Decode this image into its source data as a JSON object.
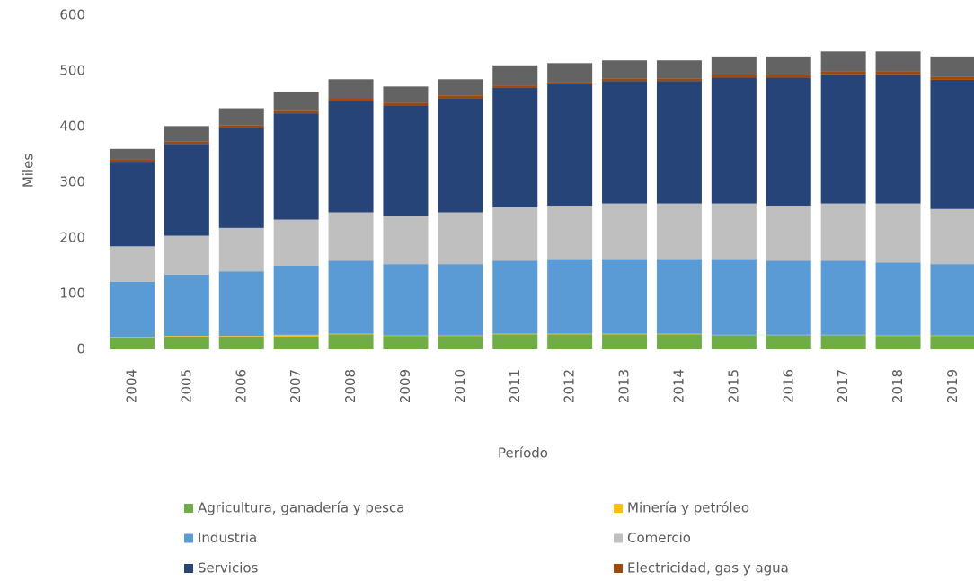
{
  "chart_data": {
    "type": "stacked_bar",
    "y_label": "Miles",
    "x_label": "Período",
    "categories": [
      "2004",
      "2005",
      "2006",
      "2007",
      "2008",
      "2009",
      "2010",
      "2011",
      "2012",
      "2013",
      "2014",
      "2015",
      "2016",
      "2017",
      "2018",
      "2019"
    ],
    "ylim": [
      0,
      600
    ],
    "yticks": [
      0,
      100,
      200,
      300,
      400,
      500,
      600
    ],
    "grid": false,
    "series": [
      {
        "name": "Agricultura, ganadería y pesca",
        "color": "#70ad47",
        "values": [
          21,
          23,
          23,
          23,
          27,
          24,
          24,
          27,
          27,
          27,
          27,
          25,
          25,
          25,
          24,
          24
        ]
      },
      {
        "name": "Minería y petróleo",
        "color": "#ffc000",
        "values": [
          1,
          1,
          1,
          3,
          1,
          1,
          1,
          1,
          1,
          1,
          1,
          1,
          1,
          1,
          1,
          1
        ]
      },
      {
        "name": "Industria",
        "color": "#5b9bd5",
        "values": [
          99,
          110,
          116,
          124,
          131,
          128,
          128,
          131,
          134,
          134,
          134,
          136,
          133,
          133,
          131,
          128
        ]
      },
      {
        "name": "Comercio",
        "color": "#bfbfbf",
        "values": [
          64,
          70,
          78,
          83,
          87,
          87,
          93,
          96,
          96,
          100,
          100,
          100,
          99,
          103,
          106,
          99
        ]
      },
      {
        "name": "Servicios",
        "color": "#264478",
        "values": [
          152,
          165,
          180,
          191,
          200,
          198,
          204,
          215,
          218,
          220,
          220,
          226,
          230,
          232,
          232,
          232
        ]
      },
      {
        "name": "Electricidad, gas y agua",
        "color": "#9e480e",
        "values": [
          4,
          4,
          4,
          4,
          4,
          5,
          6,
          4,
          4,
          4,
          4,
          5,
          5,
          5,
          5,
          5
        ]
      },
      {
        "color": "#636363",
        "values": [
          19,
          28,
          31,
          34,
          35,
          29,
          29,
          36,
          34,
          33,
          33,
          33,
          33,
          36,
          36,
          37
        ]
      }
    ]
  }
}
